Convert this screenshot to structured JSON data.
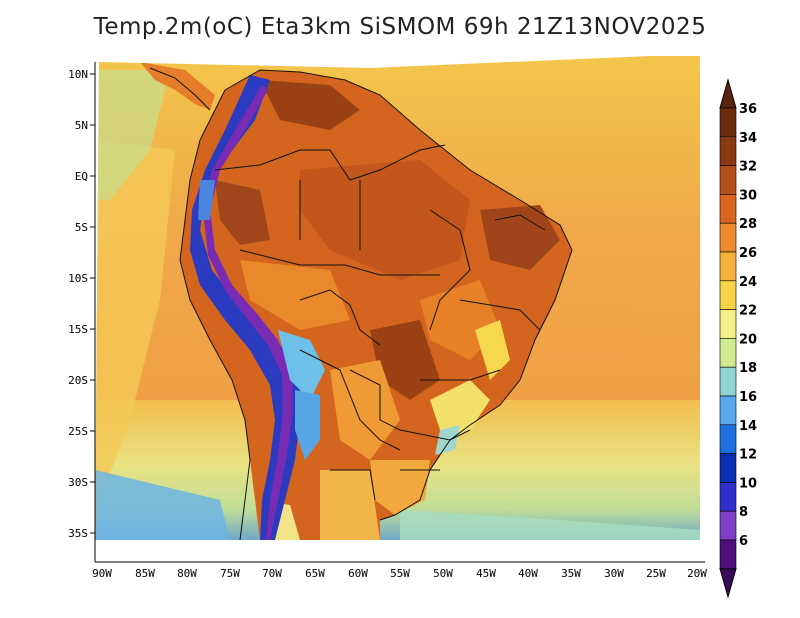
{
  "title": "Temp.2m(oC) Eta3km SiSMOM 69h 21Z13NOV2025",
  "map": {
    "lat_labels": [
      "10N",
      "5N",
      "EQ",
      "5S",
      "10S",
      "15S",
      "20S",
      "25S",
      "30S",
      "35S"
    ],
    "lon_labels": [
      "90W",
      "85W",
      "80W",
      "75W",
      "70W",
      "65W",
      "60W",
      "55W",
      "50W",
      "45W",
      "40W",
      "35W",
      "30W",
      "25W",
      "20W"
    ]
  },
  "colorbar": {
    "labels": [
      "36",
      "34",
      "32",
      "30",
      "28",
      "26",
      "24",
      "22",
      "20",
      "18",
      "16",
      "14",
      "12",
      "10",
      "8",
      "6"
    ],
    "colors": [
      "#6b2c0e",
      "#8a3a12",
      "#b5501a",
      "#d9661e",
      "#ec8a2e",
      "#f5b13a",
      "#f7d447",
      "#f3ef86",
      "#cfeb8f",
      "#93d5d5",
      "#57a8ec",
      "#1d6fe0",
      "#0b2fb4",
      "#2f2fce",
      "#7e3fc5",
      "#4e0f7a"
    ],
    "top_color": "#5a2410",
    "bottom_color": "#3a0a5e"
  }
}
